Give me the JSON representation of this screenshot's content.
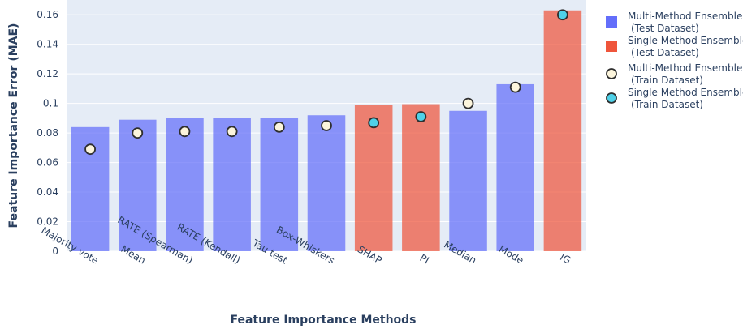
{
  "chart_data": {
    "type": "bar",
    "xlabel": "Feature Importance Methods",
    "ylabel": "Feature Importance Error (MAE)",
    "ylim": [
      0,
      0.17
    ],
    "yticks": [
      0,
      0.02,
      0.04,
      0.06,
      0.08,
      0.1,
      0.12,
      0.14,
      0.16
    ],
    "ytick_labels": [
      "0",
      "0.02",
      "0.04",
      "0.06",
      "0.08",
      "0.1",
      "0.12",
      "0.14",
      "0.16"
    ],
    "grid": true,
    "legend_position": "right",
    "categories": [
      "Majority vote",
      "Mean",
      "RATE (Spearman)",
      "RATE (Kendall)",
      "Tau test",
      "Box-Whiskers",
      "SHAP",
      "PI",
      "Median",
      "Mode",
      "IG"
    ],
    "bar_groups": [
      "multi",
      "multi",
      "multi",
      "multi",
      "multi",
      "multi",
      "single",
      "single",
      "multi",
      "multi",
      "single"
    ],
    "test_values": [
      0.084,
      0.089,
      0.09,
      0.09,
      0.09,
      0.092,
      0.099,
      0.0995,
      0.095,
      0.113,
      0.163
    ],
    "point_groups": [
      "multi",
      "multi",
      "multi",
      "multi",
      "multi",
      "multi",
      "single",
      "single",
      "multi",
      "multi",
      "single"
    ],
    "train_values": [
      0.069,
      0.08,
      0.081,
      0.081,
      0.084,
      0.085,
      0.087,
      0.091,
      0.1,
      0.111,
      0.16
    ],
    "colors": {
      "multi_bar": "#636efa",
      "single_bar": "#ef553b",
      "multi_point": "#fcf5dc",
      "single_point": "#4fd1e8",
      "point_edge": "#2f2f2f",
      "plot_bg": "#e5ecf6",
      "grid": "#ffffff"
    },
    "legend": [
      {
        "kind": "bar",
        "color_key": "multi_bar",
        "line1": "Multi-Method Ensemble",
        "line2": "(Test Dataset)"
      },
      {
        "kind": "bar",
        "color_key": "single_bar",
        "line1": "Single Method Ensemble",
        "line2": "(Test Dataset)"
      },
      {
        "kind": "point",
        "color_key": "multi_point",
        "line1": "Multi-Method Ensemble",
        "line2": "(Train  Dataset)"
      },
      {
        "kind": "point",
        "color_key": "single_point",
        "line1": "Single Method Ensemble",
        "line2": "(Train  Dataset)"
      }
    ]
  }
}
